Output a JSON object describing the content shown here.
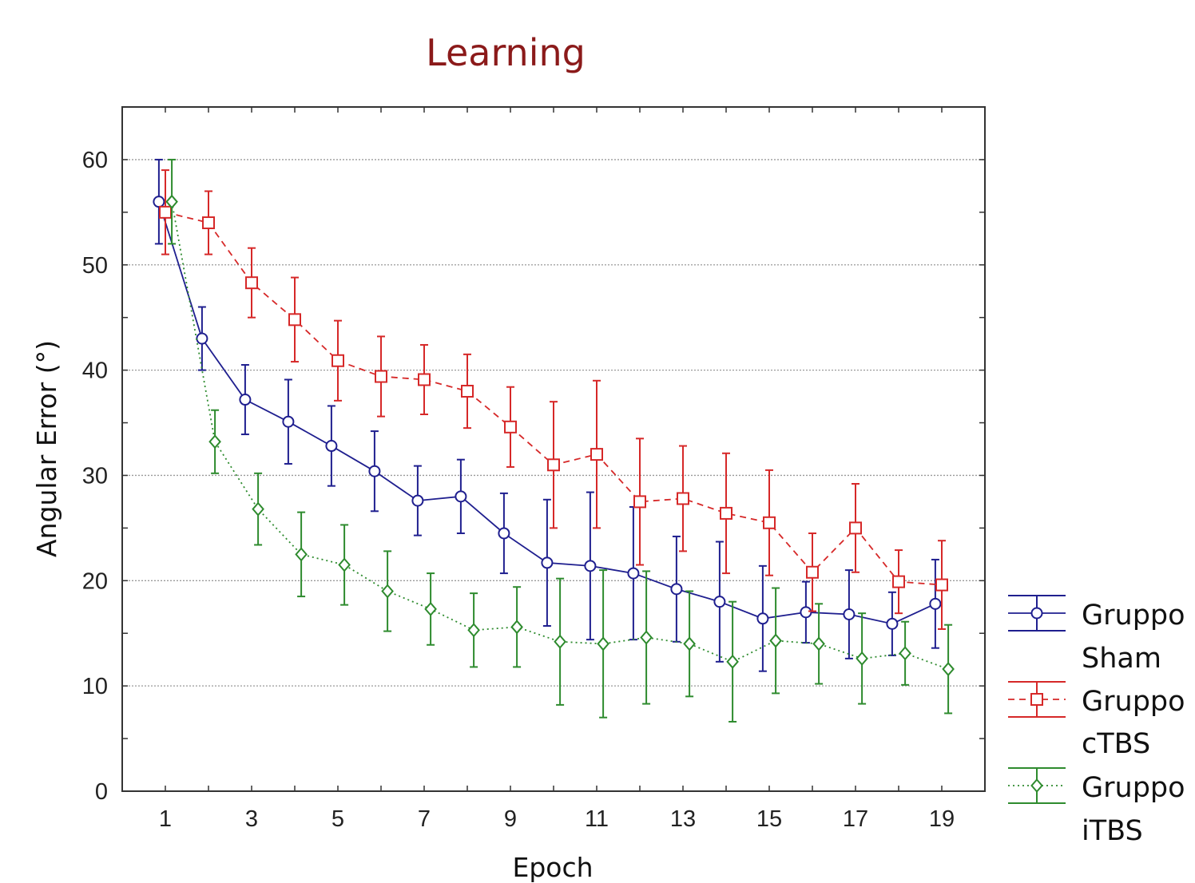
{
  "chart_data": {
    "type": "line",
    "title": "Learning",
    "xlabel": "Epoch",
    "ylabel": "Angular Error (°)",
    "x": [
      1,
      2,
      3,
      4,
      5,
      6,
      7,
      8,
      9,
      10,
      11,
      12,
      13,
      14,
      15,
      16,
      17,
      18,
      19
    ],
    "xticks": [
      "1",
      "3",
      "5",
      "7",
      "9",
      "11",
      "13",
      "15",
      "17",
      "19"
    ],
    "yticks": [
      "0",
      "10",
      "20",
      "30",
      "40",
      "50",
      "60"
    ],
    "xlim": [
      0,
      20
    ],
    "ylim": [
      0,
      65
    ],
    "grid": "horizontal-dotted",
    "error_bars": true,
    "legend_position": "right",
    "series": [
      {
        "name_line1": "Gruppo",
        "name_line2": "Sham",
        "color": "#1f1f8f",
        "marker": "circle",
        "line_style": "solid",
        "values": [
          56,
          43,
          37.2,
          35.1,
          32.8,
          30.4,
          27.6,
          28,
          24.5,
          21.7,
          21.4,
          20.7,
          19.2,
          18,
          16.4,
          17,
          16.8,
          15.9,
          17.8
        ],
        "errors": [
          4,
          3,
          3.3,
          4,
          3.8,
          3.8,
          3.3,
          3.5,
          3.8,
          6,
          7,
          6.3,
          5,
          5.7,
          5,
          2.9,
          4.2,
          3,
          4.2
        ]
      },
      {
        "name_line1": "Gruppo",
        "name_line2": "cTBS",
        "color": "#d62828",
        "marker": "square",
        "line_style": "dashed",
        "values": [
          55,
          54,
          48.3,
          44.8,
          40.9,
          39.4,
          39.1,
          38,
          34.6,
          31,
          32,
          27.5,
          27.8,
          26.4,
          25.5,
          20.8,
          25,
          19.9,
          19.6
        ],
        "errors": [
          4,
          3,
          3.3,
          4,
          3.8,
          3.8,
          3.3,
          3.5,
          3.8,
          6,
          7,
          6,
          5,
          5.7,
          5,
          3.7,
          4.2,
          3,
          4.2
        ]
      },
      {
        "name_line1": "Gruppo",
        "name_line2": "iTBS",
        "color": "#2e8b2e",
        "marker": "diamond",
        "line_style": "dotted",
        "values": [
          56,
          33.2,
          26.8,
          22.5,
          21.5,
          19,
          17.3,
          15.3,
          15.6,
          14.2,
          14,
          14.6,
          14,
          12.3,
          14.3,
          14,
          12.6,
          13.1,
          11.6
        ],
        "errors": [
          4,
          3,
          3.4,
          4,
          3.8,
          3.8,
          3.4,
          3.5,
          3.8,
          6,
          7,
          6.3,
          5,
          5.7,
          5,
          3.8,
          4.3,
          3,
          4.2
        ]
      }
    ]
  }
}
